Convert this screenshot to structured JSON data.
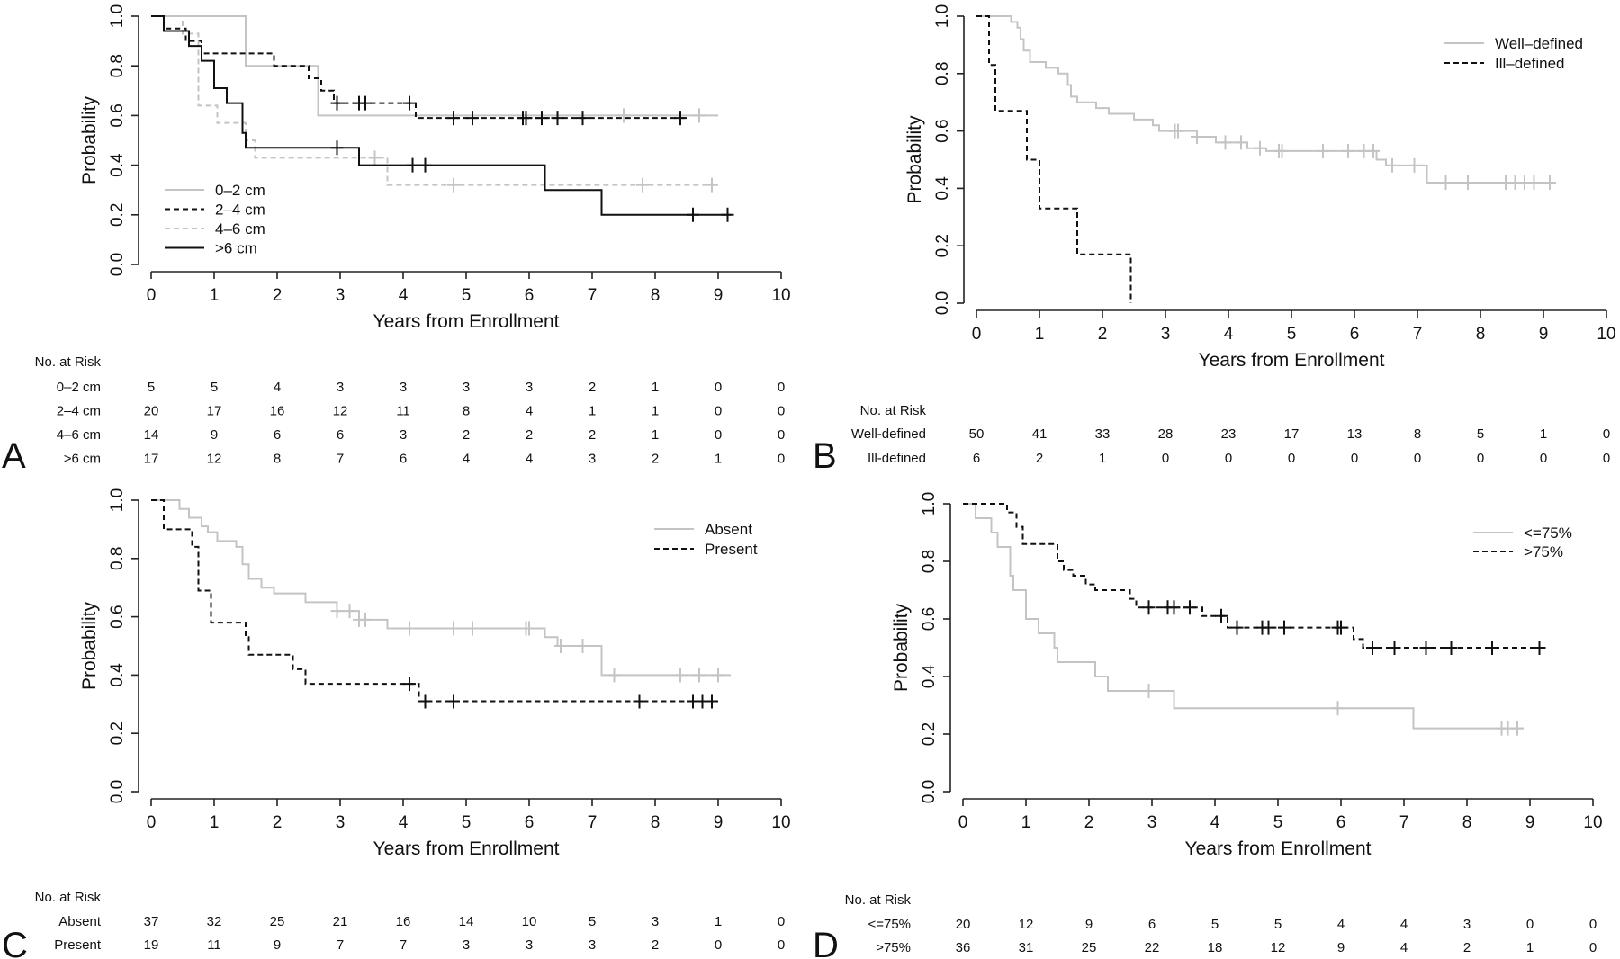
{
  "figure": {
    "x_axis_label": "Years from Enrollment",
    "y_axis_label": "Probability",
    "risk_header": "No. at Risk",
    "x_ticks": [
      "0",
      "1",
      "2",
      "3",
      "4",
      "5",
      "6",
      "7",
      "8",
      "9",
      "10"
    ],
    "y_ticks": [
      "0.0",
      "0.2",
      "0.4",
      "0.6",
      "0.8",
      "1.0"
    ]
  },
  "colors": {
    "gray": "#c4c4c4",
    "black": "#111111"
  },
  "chart_data": [
    {
      "panel": "A",
      "type": "line",
      "xlabel": "Years from Enrollment",
      "ylabel": "Probability",
      "xlim": [
        0,
        10
      ],
      "ylim": [
        0,
        1
      ],
      "legend_position": "bottom-left",
      "series": [
        {
          "name": "0–2 cm",
          "color": "gray",
          "dash": "solid",
          "steps": [
            [
              0,
              1.0
            ],
            [
              1.5,
              0.8
            ],
            [
              2.65,
              0.6
            ],
            [
              9,
              0.6
            ]
          ],
          "censor": [
            7.5,
            8.7
          ]
        },
        {
          "name": "2–4 cm",
          "color": "black",
          "dash": "dashed",
          "steps": [
            [
              0,
              1.0
            ],
            [
              0.2,
              0.95
            ],
            [
              0.55,
              0.9
            ],
            [
              0.8,
              0.85
            ],
            [
              1.95,
              0.8
            ],
            [
              2.5,
              0.75
            ],
            [
              2.7,
              0.7
            ],
            [
              2.9,
              0.65
            ],
            [
              4.2,
              0.59
            ],
            [
              8.5,
              0.59
            ]
          ],
          "censor": [
            2.95,
            3.3,
            3.4,
            4.1,
            4.8,
            5.1,
            5.9,
            5.95,
            6.2,
            6.45,
            6.85,
            8.4
          ]
        },
        {
          "name": "4–6 cm",
          "color": "gray",
          "dash": "dashed",
          "steps": [
            [
              0,
              1.0
            ],
            [
              0.5,
              0.93
            ],
            [
              0.75,
              0.64
            ],
            [
              1.05,
              0.57
            ],
            [
              1.5,
              0.5
            ],
            [
              1.65,
              0.43
            ],
            [
              3.75,
              0.32
            ],
            [
              9,
              0.32
            ]
          ],
          "censor": [
            3.55,
            4.8,
            7.8,
            8.9
          ]
        },
        {
          "name": ">6 cm",
          "color": "black",
          "dash": "solid",
          "steps": [
            [
              0,
              1.0
            ],
            [
              0.2,
              0.94
            ],
            [
              0.6,
              0.88
            ],
            [
              0.8,
              0.82
            ],
            [
              1.0,
              0.71
            ],
            [
              1.2,
              0.65
            ],
            [
              1.45,
              0.53
            ],
            [
              1.5,
              0.47
            ],
            [
              3.3,
              0.4
            ],
            [
              6.25,
              0.3
            ],
            [
              7.15,
              0.2
            ],
            [
              9.2,
              0.2
            ]
          ],
          "censor": [
            2.95,
            4.15,
            4.35,
            8.6,
            9.15
          ]
        }
      ],
      "risk_table": {
        "header": "No. at Risk",
        "rows": [
          {
            "label": "0–2 cm",
            "values": [
              5,
              5,
              4,
              3,
              3,
              3,
              3,
              2,
              1,
              0,
              0
            ]
          },
          {
            "label": "2–4 cm",
            "values": [
              20,
              17,
              16,
              12,
              11,
              8,
              4,
              1,
              1,
              0,
              0
            ]
          },
          {
            "label": "4–6 cm",
            "values": [
              14,
              9,
              6,
              6,
              3,
              2,
              2,
              2,
              1,
              0,
              0
            ]
          },
          {
            "label": ">6 cm",
            "values": [
              17,
              12,
              8,
              7,
              6,
              4,
              4,
              3,
              2,
              1,
              0
            ]
          }
        ]
      }
    },
    {
      "panel": "B",
      "type": "line",
      "xlabel": "Years from Enrollment",
      "ylabel": "Probability",
      "xlim": [
        0,
        10
      ],
      "ylim": [
        0,
        1
      ],
      "legend_position": "top-right",
      "series": [
        {
          "name": "Well–defined",
          "color": "gray",
          "dash": "solid",
          "steps": [
            [
              0,
              1.0
            ],
            [
              0.55,
              0.98
            ],
            [
              0.65,
              0.96
            ],
            [
              0.7,
              0.92
            ],
            [
              0.75,
              0.88
            ],
            [
              0.85,
              0.84
            ],
            [
              1.1,
              0.82
            ],
            [
              1.3,
              0.8
            ],
            [
              1.45,
              0.76
            ],
            [
              1.5,
              0.72
            ],
            [
              1.6,
              0.7
            ],
            [
              1.9,
              0.68
            ],
            [
              2.1,
              0.66
            ],
            [
              2.5,
              0.64
            ],
            [
              2.8,
              0.62
            ],
            [
              2.9,
              0.6
            ],
            [
              3.5,
              0.58
            ],
            [
              3.8,
              0.56
            ],
            [
              4.3,
              0.54
            ],
            [
              4.6,
              0.53
            ],
            [
              6.35,
              0.5
            ],
            [
              6.5,
              0.48
            ],
            [
              7.15,
              0.42
            ],
            [
              9.2,
              0.42
            ]
          ],
          "censor": [
            3.15,
            3.2,
            3.5,
            3.95,
            4.2,
            4.5,
            4.8,
            4.85,
            5.5,
            5.9,
            6.15,
            6.3,
            6.6,
            6.95,
            7.45,
            7.8,
            8.4,
            8.55,
            8.7,
            8.85,
            9.1
          ]
        },
        {
          "name": "Ill–defined",
          "color": "black",
          "dash": "dashed",
          "steps": [
            [
              0,
              1.0
            ],
            [
              0.2,
              0.83
            ],
            [
              0.3,
              0.67
            ],
            [
              0.8,
              0.5
            ],
            [
              1.0,
              0.33
            ],
            [
              1.6,
              0.17
            ],
            [
              2.45,
              0.0
            ]
          ],
          "censor": []
        }
      ],
      "risk_table": {
        "header": "No. at Risk",
        "rows": [
          {
            "label": "Well-defined",
            "values": [
              50,
              41,
              33,
              28,
              23,
              17,
              13,
              8,
              5,
              1,
              0
            ]
          },
          {
            "label": "Ill-defined",
            "values": [
              6,
              2,
              1,
              0,
              0,
              0,
              0,
              0,
              0,
              0,
              0
            ]
          }
        ]
      }
    },
    {
      "panel": "C",
      "type": "line",
      "xlabel": "Years from Enrollment",
      "ylabel": "Probability",
      "xlim": [
        0,
        10
      ],
      "ylim": [
        0,
        1
      ],
      "legend_position": "top-right",
      "series": [
        {
          "name": "Absent",
          "color": "gray",
          "dash": "solid",
          "steps": [
            [
              0,
              1.0
            ],
            [
              0.45,
              0.97
            ],
            [
              0.6,
              0.94
            ],
            [
              0.8,
              0.91
            ],
            [
              0.9,
              0.89
            ],
            [
              1.05,
              0.86
            ],
            [
              1.35,
              0.84
            ],
            [
              1.45,
              0.78
            ],
            [
              1.55,
              0.73
            ],
            [
              1.75,
              0.7
            ],
            [
              1.95,
              0.68
            ],
            [
              2.45,
              0.65
            ],
            [
              2.95,
              0.62
            ],
            [
              3.3,
              0.59
            ],
            [
              3.75,
              0.56
            ],
            [
              6.25,
              0.53
            ],
            [
              6.45,
              0.5
            ],
            [
              7.15,
              0.4
            ],
            [
              9.2,
              0.4
            ]
          ],
          "censor": [
            2.95,
            3.15,
            3.3,
            3.4,
            4.1,
            4.8,
            5.1,
            5.95,
            6.0,
            6.5,
            6.85,
            7.35,
            8.4,
            8.7,
            9.0
          ]
        },
        {
          "name": "Present",
          "color": "black",
          "dash": "dashed",
          "steps": [
            [
              0,
              1.0
            ],
            [
              0.2,
              0.9
            ],
            [
              0.65,
              0.84
            ],
            [
              0.75,
              0.69
            ],
            [
              0.95,
              0.58
            ],
            [
              1.5,
              0.53
            ],
            [
              1.55,
              0.47
            ],
            [
              2.25,
              0.42
            ],
            [
              2.45,
              0.37
            ],
            [
              4.25,
              0.31
            ],
            [
              9.0,
              0.31
            ]
          ],
          "censor": [
            4.1,
            4.35,
            4.8,
            7.75,
            8.6,
            8.75,
            8.9
          ]
        }
      ],
      "risk_table": {
        "header": "No. at Risk",
        "rows": [
          {
            "label": "Absent",
            "values": [
              37,
              32,
              25,
              21,
              16,
              14,
              10,
              5,
              3,
              1,
              0
            ]
          },
          {
            "label": "Present",
            "values": [
              19,
              11,
              9,
              7,
              7,
              3,
              3,
              3,
              2,
              0,
              0
            ]
          }
        ]
      }
    },
    {
      "panel": "D",
      "type": "line",
      "xlabel": "Years from Enrollment",
      "ylabel": "Probability",
      "xlim": [
        0,
        10
      ],
      "ylim": [
        0,
        1
      ],
      "legend_position": "top-right",
      "series": [
        {
          "name": "<=75%",
          "color": "gray",
          "dash": "solid",
          "steps": [
            [
              0,
              1.0
            ],
            [
              0.2,
              0.95
            ],
            [
              0.45,
              0.9
            ],
            [
              0.55,
              0.85
            ],
            [
              0.75,
              0.75
            ],
            [
              0.8,
              0.7
            ],
            [
              1.0,
              0.6
            ],
            [
              1.2,
              0.55
            ],
            [
              1.45,
              0.5
            ],
            [
              1.5,
              0.45
            ],
            [
              2.1,
              0.4
            ],
            [
              2.3,
              0.35
            ],
            [
              3.35,
              0.29
            ],
            [
              7.15,
              0.22
            ],
            [
              8.9,
              0.22
            ]
          ],
          "censor": [
            2.95,
            5.95,
            8.55,
            8.65,
            8.8
          ]
        },
        {
          "name": ">75%",
          "color": "black",
          "dash": "dashed",
          "steps": [
            [
              0,
              1.0
            ],
            [
              0.7,
              0.97
            ],
            [
              0.85,
              0.92
            ],
            [
              0.95,
              0.86
            ],
            [
              1.5,
              0.8
            ],
            [
              1.6,
              0.77
            ],
            [
              1.75,
              0.75
            ],
            [
              1.95,
              0.72
            ],
            [
              2.1,
              0.7
            ],
            [
              2.65,
              0.67
            ],
            [
              2.75,
              0.64
            ],
            [
              3.8,
              0.61
            ],
            [
              4.2,
              0.57
            ],
            [
              6.2,
              0.53
            ],
            [
              6.35,
              0.5
            ],
            [
              9.2,
              0.5
            ]
          ],
          "censor": [
            2.95,
            3.25,
            3.35,
            3.6,
            4.1,
            4.35,
            4.75,
            4.85,
            5.1,
            5.95,
            6.0,
            6.5,
            6.85,
            7.35,
            7.75,
            8.4,
            9.15
          ]
        }
      ],
      "risk_table": {
        "header": "No. at Risk",
        "rows": [
          {
            "label": "<=75%",
            "values": [
              20,
              12,
              9,
              6,
              5,
              5,
              4,
              4,
              3,
              0,
              0
            ]
          },
          {
            "label": ">75%",
            "values": [
              36,
              31,
              25,
              22,
              18,
              12,
              9,
              4,
              2,
              1,
              0
            ]
          }
        ]
      }
    }
  ]
}
